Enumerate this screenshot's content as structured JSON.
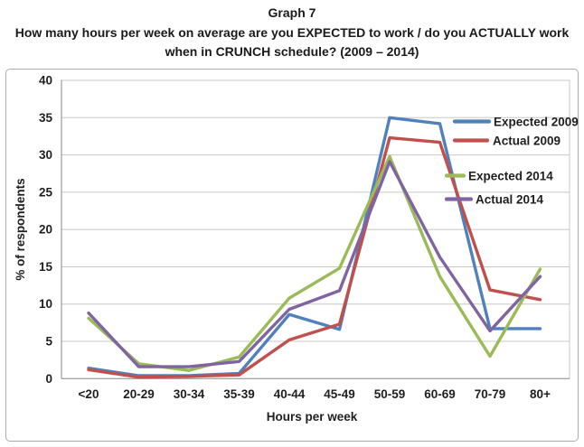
{
  "title": "Graph 7",
  "question_line1": "How many hours per week on average are you EXPECTED to work / do you ACTUALLY work",
  "question_line2": "when in CRUNCH schedule? (2009 – 2014)",
  "chart_data": {
    "type": "line",
    "title": "Graph 7",
    "subtitle": "How many hours per week on average are you EXPECTED to work / do you ACTUALLY work when in CRUNCH schedule? (2009 – 2014)",
    "xlabel": "Hours per week",
    "ylabel": "% of respondents",
    "ylim": [
      0,
      40
    ],
    "yticks": [
      0,
      5,
      10,
      15,
      20,
      25,
      30,
      35,
      40
    ],
    "grid": true,
    "legend_position": "right-inside",
    "categories": [
      "<20",
      "20-29",
      "30-34",
      "35-39",
      "40-44",
      "45-49",
      "50-59",
      "60-69",
      "70-79",
      "80+"
    ],
    "series": [
      {
        "name": "Expected 2009",
        "color": "#4F81BD",
        "values": [
          1.4,
          0.4,
          0.4,
          0.7,
          8.6,
          6.6,
          35.0,
          34.2,
          6.7,
          6.7
        ]
      },
      {
        "name": "Actual 2009",
        "color": "#C0504D",
        "values": [
          1.2,
          0.2,
          0.3,
          0.5,
          5.2,
          7.3,
          32.3,
          31.7,
          11.9,
          10.6
        ]
      },
      {
        "name": "Expected 2014",
        "color": "#9BBB59",
        "values": [
          8.1,
          2.0,
          1.1,
          2.9,
          10.8,
          14.8,
          29.8,
          13.7,
          3.0,
          14.7
        ]
      },
      {
        "name": "Actual 2014",
        "color": "#8064A2",
        "values": [
          8.8,
          1.6,
          1.6,
          2.3,
          9.3,
          11.8,
          29.1,
          16.3,
          6.4,
          13.7
        ]
      }
    ],
    "colors": {
      "gridline": "#C8C8C8",
      "axis": "#9B9B9B",
      "frame_border": "#ABABAB",
      "text": "#1F1F1F"
    }
  }
}
